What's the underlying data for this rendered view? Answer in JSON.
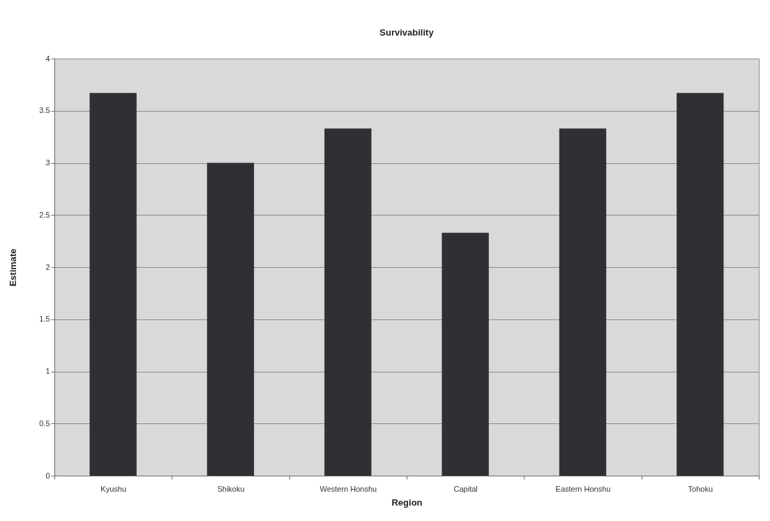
{
  "chart_data": {
    "type": "bar",
    "title": "Survivability",
    "xlabel": "Region",
    "ylabel": "Estimate",
    "categories": [
      "Kyushu",
      "Shikoku",
      "Western Honshu",
      "Capital",
      "Eastern Honshu",
      "Tohoku"
    ],
    "values": [
      3.67,
      3.0,
      3.33,
      2.33,
      3.33,
      3.67
    ],
    "color": "#2f2f34",
    "ylim": [
      0,
      4
    ],
    "yticks": [
      0,
      0.5,
      1,
      1.5,
      2,
      2.5,
      3,
      3.5,
      4
    ],
    "grid": "y"
  }
}
